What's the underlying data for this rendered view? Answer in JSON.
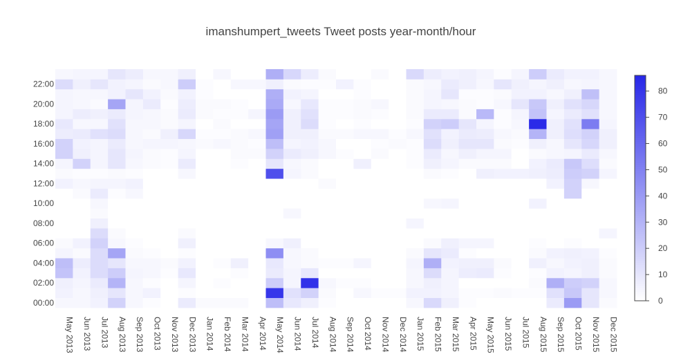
{
  "chart_data": {
    "type": "heatmap",
    "title": "imanshumpert_tweets Tweet posts year-month/hour",
    "xlabel": "",
    "ylabel": "",
    "x_categories": [
      "May 2013",
      "Jun 2013",
      "Jul 2013",
      "Aug 2013",
      "Sep 2013",
      "Oct 2013",
      "Nov 2013",
      "Dec 2013",
      "Jan 2014",
      "Feb 2014",
      "Mar 2014",
      "Apr 2014",
      "May 2014",
      "Jun 2014",
      "Jul 2014",
      "Aug 2014",
      "Sep 2014",
      "Oct 2014",
      "Nov 2014",
      "Dec 2014",
      "Jan 2015",
      "Feb 2015",
      "Mar 2015",
      "Apr 2015",
      "May 2015",
      "Jun 2015",
      "Jul 2015",
      "Aug 2015",
      "Sep 2015",
      "Oct 2015",
      "Nov 2015",
      "Dec 2015"
    ],
    "y_hours": [
      0,
      1,
      2,
      3,
      4,
      5,
      6,
      7,
      8,
      9,
      10,
      11,
      12,
      13,
      14,
      15,
      16,
      17,
      18,
      19,
      20,
      21,
      22,
      23
    ],
    "y_tick_labels": [
      "00:00",
      "02:00",
      "04:00",
      "06:00",
      "08:00",
      "10:00",
      "12:00",
      "14:00",
      "16:00",
      "18:00",
      "20:00",
      "22:00"
    ],
    "z": [
      [
        3,
        3,
        5,
        18,
        3,
        1,
        0,
        8,
        2,
        2,
        2,
        0,
        26,
        9,
        6,
        1,
        0,
        0,
        0,
        0,
        3,
        15,
        6,
        1,
        0,
        0,
        0,
        0,
        8,
        40,
        10,
        2
      ],
      [
        5,
        3,
        6,
        10,
        3,
        5,
        0,
        1,
        0,
        0,
        0,
        0,
        80,
        12,
        18,
        2,
        0,
        3,
        1,
        1,
        5,
        5,
        4,
        1,
        1,
        2,
        1,
        1,
        12,
        22,
        10,
        3
      ],
      [
        6,
        4,
        8,
        30,
        3,
        1,
        0,
        4,
        0,
        1,
        0,
        0,
        20,
        4,
        82,
        3,
        1,
        1,
        0,
        0,
        3,
        6,
        4,
        0,
        0,
        0,
        0,
        2,
        32,
        20,
        18,
        3
      ],
      [
        24,
        5,
        14,
        20,
        4,
        3,
        1,
        9,
        0,
        0,
        1,
        0,
        8,
        4,
        9,
        0,
        0,
        0,
        0,
        0,
        3,
        14,
        4,
        7,
        8,
        1,
        0,
        1,
        5,
        4,
        6,
        2
      ],
      [
        26,
        7,
        14,
        10,
        3,
        3,
        2,
        5,
        0,
        1,
        6,
        0,
        9,
        3,
        2,
        1,
        1,
        4,
        0,
        0,
        4,
        32,
        5,
        6,
        6,
        2,
        0,
        6,
        3,
        5,
        6,
        2
      ],
      [
        4,
        2,
        14,
        36,
        2,
        1,
        0,
        1,
        0,
        0,
        0,
        0,
        45,
        3,
        2,
        0,
        0,
        0,
        0,
        0,
        2,
        10,
        8,
        1,
        0,
        0,
        0,
        2,
        5,
        6,
        5,
        1
      ],
      [
        2,
        5,
        18,
        3,
        1,
        0,
        0,
        6,
        0,
        0,
        0,
        0,
        3,
        6,
        0,
        0,
        0,
        0,
        0,
        0,
        0,
        2,
        6,
        4,
        4,
        0,
        0,
        1,
        0,
        1,
        0,
        0
      ],
      [
        0,
        0,
        14,
        2,
        0,
        0,
        0,
        2,
        0,
        0,
        0,
        0,
        0,
        0,
        0,
        0,
        0,
        0,
        0,
        0,
        0,
        0,
        0,
        0,
        0,
        0,
        0,
        0,
        0,
        0,
        0,
        4
      ],
      [
        0,
        0,
        6,
        0,
        0,
        0,
        0,
        0,
        0,
        0,
        0,
        0,
        0,
        0,
        0,
        0,
        0,
        0,
        0,
        0,
        4,
        0,
        0,
        0,
        0,
        0,
        0,
        0,
        0,
        0,
        0,
        0
      ],
      [
        0,
        0,
        2,
        0,
        0,
        0,
        0,
        0,
        0,
        0,
        0,
        0,
        0,
        3,
        0,
        0,
        0,
        0,
        0,
        0,
        0,
        0,
        0,
        0,
        0,
        0,
        0,
        0,
        0,
        0,
        0,
        0
      ],
      [
        0,
        0,
        3,
        0,
        0,
        0,
        0,
        0,
        0,
        0,
        0,
        0,
        0,
        0,
        0,
        0,
        0,
        0,
        0,
        0,
        0,
        3,
        4,
        0,
        0,
        0,
        0,
        5,
        0,
        0,
        0,
        0
      ],
      [
        0,
        2,
        8,
        1,
        3,
        0,
        0,
        0,
        0,
        0,
        0,
        0,
        0,
        0,
        0,
        0,
        0,
        0,
        0,
        0,
        0,
        0,
        0,
        0,
        0,
        0,
        0,
        0,
        0,
        18,
        0,
        0
      ],
      [
        5,
        3,
        4,
        4,
        5,
        0,
        0,
        0,
        0,
        0,
        0,
        0,
        0,
        0,
        0,
        2,
        0,
        0,
        0,
        0,
        0,
        0,
        0,
        0,
        0,
        0,
        0,
        0,
        5,
        18,
        3,
        0
      ],
      [
        2,
        1,
        1,
        2,
        1,
        0,
        0,
        3,
        0,
        0,
        0,
        0,
        70,
        4,
        2,
        0,
        0,
        0,
        0,
        0,
        0,
        2,
        1,
        0,
        6,
        5,
        5,
        6,
        7,
        20,
        18,
        4
      ],
      [
        4,
        18,
        4,
        10,
        3,
        2,
        1,
        8,
        0,
        0,
        1,
        0,
        10,
        3,
        2,
        0,
        0,
        6,
        0,
        0,
        1,
        6,
        4,
        2,
        2,
        2,
        0,
        5,
        8,
        22,
        13,
        2
      ],
      [
        18,
        6,
        4,
        10,
        4,
        2,
        1,
        4,
        0,
        0,
        2,
        2,
        18,
        8,
        6,
        3,
        1,
        0,
        2,
        0,
        1,
        8,
        3,
        6,
        4,
        4,
        0,
        2,
        3,
        4,
        8,
        3
      ],
      [
        18,
        5,
        4,
        8,
        3,
        4,
        4,
        3,
        2,
        3,
        2,
        1,
        26,
        4,
        5,
        3,
        0,
        0,
        1,
        2,
        1,
        14,
        6,
        10,
        10,
        2,
        1,
        6,
        3,
        10,
        16,
        6
      ],
      [
        7,
        8,
        12,
        14,
        3,
        2,
        6,
        16,
        1,
        1,
        2,
        3,
        38,
        6,
        6,
        2,
        2,
        3,
        3,
        1,
        3,
        12,
        5,
        8,
        7,
        3,
        2,
        30,
        6,
        13,
        18,
        6
      ],
      [
        9,
        3,
        3,
        12,
        3,
        3,
        2,
        4,
        0,
        2,
        0,
        0,
        36,
        6,
        14,
        1,
        0,
        1,
        0,
        0,
        1,
        18,
        20,
        10,
        4,
        1,
        3,
        85,
        6,
        12,
        52,
        4
      ],
      [
        4,
        7,
        6,
        8,
        4,
        3,
        2,
        8,
        2,
        1,
        1,
        4,
        40,
        6,
        12,
        1,
        1,
        2,
        1,
        0,
        2,
        8,
        8,
        2,
        28,
        1,
        4,
        24,
        4,
        8,
        12,
        3
      ],
      [
        4,
        3,
        2,
        36,
        4,
        8,
        1,
        7,
        2,
        2,
        1,
        0,
        34,
        3,
        9,
        1,
        1,
        2,
        3,
        0,
        2,
        4,
        3,
        2,
        1,
        3,
        10,
        22,
        6,
        12,
        16,
        3
      ],
      [
        4,
        3,
        3,
        5,
        10,
        5,
        2,
        5,
        1,
        0,
        0,
        0,
        32,
        5,
        4,
        0,
        0,
        1,
        0,
        0,
        2,
        4,
        10,
        1,
        1,
        2,
        5,
        5,
        3,
        6,
        25,
        3
      ],
      [
        14,
        6,
        10,
        5,
        4,
        2,
        3,
        20,
        1,
        0,
        3,
        3,
        6,
        2,
        1,
        1,
        5,
        1,
        0,
        0,
        2,
        3,
        8,
        6,
        3,
        10,
        6,
        4,
        6,
        3,
        4,
        3
      ],
      [
        3,
        4,
        4,
        10,
        7,
        3,
        3,
        6,
        0,
        3,
        0,
        0,
        32,
        16,
        7,
        2,
        0,
        0,
        2,
        0,
        15,
        7,
        5,
        6,
        4,
        1,
        4,
        20,
        8,
        5,
        5,
        3
      ]
    ],
    "zmin": 0,
    "zmax": 86,
    "colorscale": [
      "#ffffff",
      "#2727e8"
    ],
    "colorbar": {
      "ticks": [
        0,
        10,
        20,
        30,
        40,
        50,
        60,
        70,
        80
      ],
      "tick_labels": [
        "0",
        "10",
        "20",
        "30",
        "40",
        "50",
        "60",
        "70",
        "80"
      ]
    },
    "grid": false,
    "legend": "colorbar-right"
  }
}
